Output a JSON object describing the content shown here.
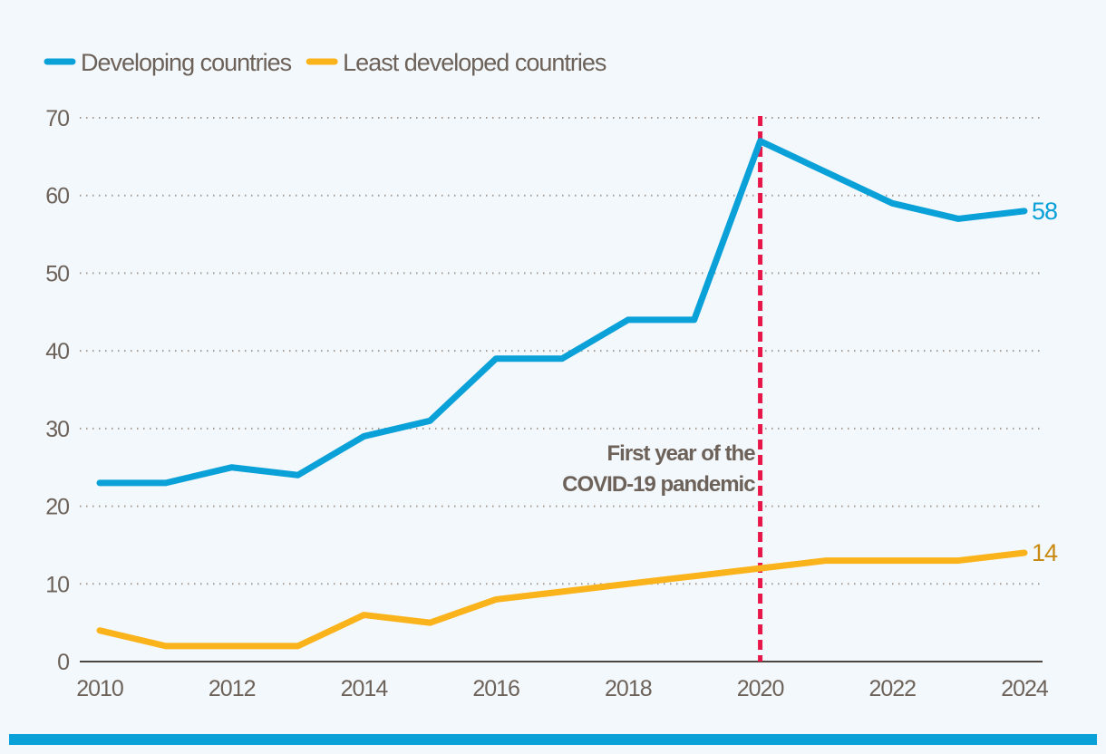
{
  "chart_data": {
    "type": "line",
    "title": "",
    "xlabel": "",
    "ylabel": "",
    "x": [
      2010,
      2011,
      2012,
      2013,
      2014,
      2015,
      2016,
      2017,
      2018,
      2019,
      2020,
      2021,
      2022,
      2023,
      2024
    ],
    "xlim": [
      2010,
      2024
    ],
    "ylim": [
      0,
      70
    ],
    "x_ticks": [
      "2010",
      "2012",
      "2014",
      "2016",
      "2018",
      "2020",
      "2022",
      "2024"
    ],
    "y_ticks": [
      "0",
      "10",
      "20",
      "30",
      "40",
      "50",
      "60",
      "70"
    ],
    "grid": "horizontal dotted",
    "legend_placement": "top-left",
    "series": [
      {
        "name": "Developing countries",
        "color": "#0aa0d8",
        "end_label": "58",
        "values": [
          23,
          23,
          25,
          24,
          29,
          31,
          39,
          39,
          44,
          44,
          67,
          63,
          59,
          57,
          58
        ]
      },
      {
        "name": "Least developed countries",
        "color": "#fbb31b",
        "end_label": "14",
        "end_label_color": "#c98a12",
        "values": [
          4,
          2,
          2,
          2,
          6,
          5,
          8,
          9,
          10,
          11,
          12,
          13,
          13,
          13,
          14
        ]
      }
    ],
    "annotation": {
      "x": 2020,
      "line_color": "#e8174a",
      "text": [
        "First year of the",
        "COVID-19 pandemic"
      ]
    }
  }
}
